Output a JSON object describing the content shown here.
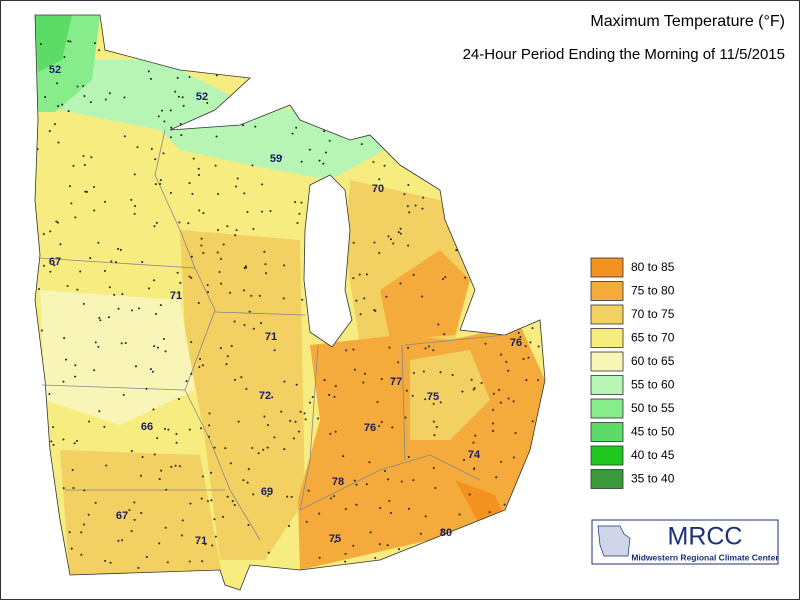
{
  "header": {
    "title": "Maximum Temperature (°F)",
    "subtitle": "24-Hour Period Ending the Morning of 11/5/2015"
  },
  "legend": {
    "items": [
      {
        "label": "80 to 85",
        "color": "#f3921f"
      },
      {
        "label": "75 to 80",
        "color": "#f5ab3c"
      },
      {
        "label": "70 to 75",
        "color": "#f2d061"
      },
      {
        "label": "65 to 70",
        "color": "#f6ec80"
      },
      {
        "label": "60 to 65",
        "color": "#f8f5b6"
      },
      {
        "label": "55 to 60",
        "color": "#b6f5b4"
      },
      {
        "label": "50 to 55",
        "color": "#86ed8a"
      },
      {
        "label": "45 to 50",
        "color": "#5cdb66"
      },
      {
        "label": "40 to 45",
        "color": "#1ec81e"
      },
      {
        "label": "35 to 40",
        "color": "#3a9a3a"
      }
    ]
  },
  "stations": [
    "52",
    "52",
    "59",
    "70",
    "67",
    "71",
    "71",
    "72",
    "77",
    "76",
    "75",
    "76",
    "66",
    "69",
    "78",
    "74",
    "67",
    "71",
    "75",
    "80"
  ],
  "logo": {
    "name": "MRCC",
    "full_name": "Midwestern Regional Climate Center"
  }
}
